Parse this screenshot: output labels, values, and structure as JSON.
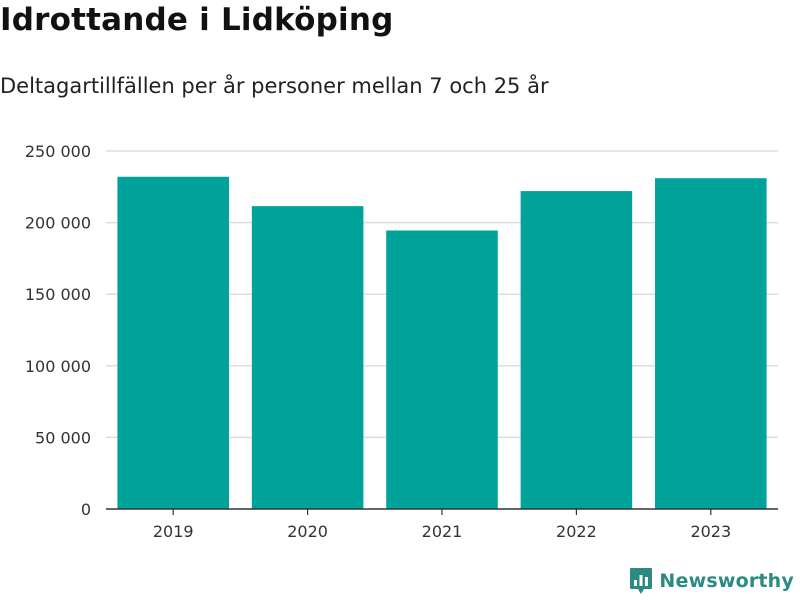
{
  "title": "Idrottande i Lidköping",
  "subtitle": "Deltagartillfällen per år personer mellan 7 och 25 år",
  "branding": {
    "name": "Newsworthy",
    "logo_icon": "newsworthy-bar-chart-logo"
  },
  "colors": {
    "bar": "#00a39a",
    "grid": "#dddddd",
    "axis": "#333333",
    "tick_text": "#333333",
    "brand": "#2a8b83"
  },
  "chart_data": {
    "type": "bar",
    "title": "Idrottande i Lidköping",
    "subtitle": "Deltagartillfällen per år personer mellan 7 och 25 år",
    "categories": [
      "2019",
      "2020",
      "2021",
      "2022",
      "2023"
    ],
    "values": [
      232000,
      211500,
      194500,
      222000,
      231000
    ],
    "ylim": [
      0,
      250000
    ],
    "yticks": [
      0,
      50000,
      100000,
      150000,
      200000,
      250000
    ],
    "ytick_labels": [
      "0",
      "50 000",
      "100 000",
      "150 000",
      "200 000",
      "250 000"
    ],
    "grid": true,
    "legend": "none"
  }
}
